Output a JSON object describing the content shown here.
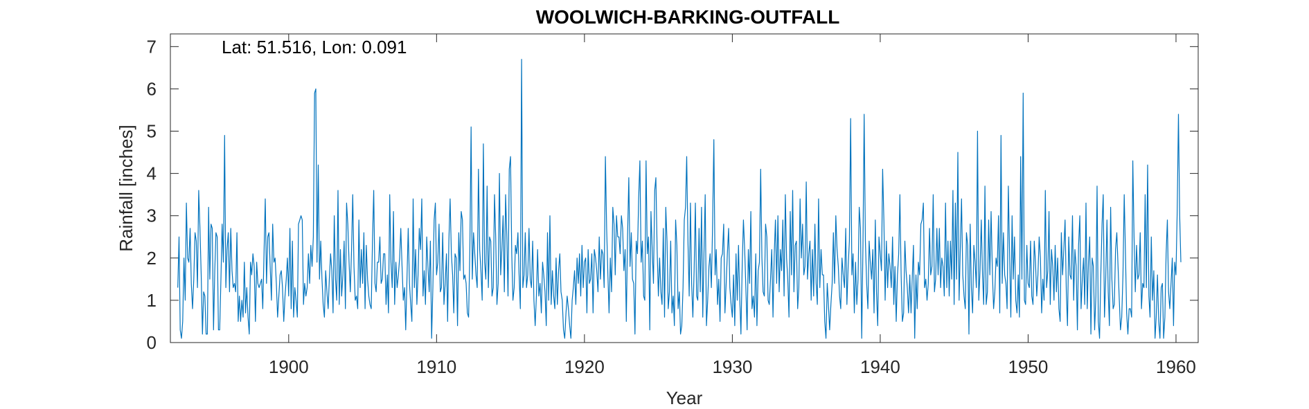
{
  "chart_data": {
    "type": "line",
    "title": "WOOLWICH-BARKING-OUTFALL",
    "annotation": "Lat: 51.516, Lon: 0.091",
    "xlabel": "Year",
    "ylabel": "Rainfall [inches]",
    "xlim": [
      1892.0,
      1961.5
    ],
    "ylim": [
      0,
      7.3
    ],
    "xticks": [
      1900,
      1910,
      1920,
      1930,
      1940,
      1950,
      1960
    ],
    "yticks": [
      0,
      1,
      2,
      3,
      4,
      5,
      6,
      7
    ],
    "grid": false,
    "box": true,
    "series": [
      {
        "color": "#0072BD",
        "x_start": 1892.5,
        "x_step": 0.08333,
        "values": [
          1.3,
          2.5,
          0.3,
          0.1,
          0.5,
          2.0,
          1.0,
          3.3,
          2.0,
          1.9,
          2.7,
          1.4,
          0.8,
          1.5,
          2.6,
          2.4,
          1.3,
          3.6,
          2.7,
          1.6,
          0.2,
          1.2,
          1.1,
          0.2,
          0.2,
          3.2,
          1.5,
          2.8,
          2.7,
          0.3,
          1.7,
          2.6,
          2.5,
          0.3,
          0.3,
          1.5,
          2.8,
          1.9,
          4.9,
          1.3,
          2.2,
          2.6,
          1.2,
          2.7,
          1.7,
          1.3,
          1.4,
          1.2,
          2.6,
          0.5,
          1.1,
          0.5,
          1.0,
          0.6,
          1.9,
          0.7,
          1.3,
          0.6,
          0.2,
          1.9,
          1.6,
          2.1,
          1.8,
          0.5,
          1.9,
          1.4,
          1.3,
          1.4,
          1.5,
          0.8,
          2.1,
          3.4,
          1.4,
          2.5,
          2.6,
          1.8,
          1.0,
          2.8,
          1.9,
          2.0,
          1.4,
          0.6,
          1.1,
          1.6,
          1.7,
          1.3,
          0.5,
          1.1,
          1.5,
          2.0,
          1.1,
          2.7,
          0.8,
          2.4,
          0.6,
          1.3,
          1.0,
          0.6,
          2.8,
          2.9,
          3.0,
          2.9,
          0.9,
          1.4,
          1.1,
          1.3,
          2.1,
          1.4,
          2.3,
          1.8,
          2.5,
          5.9,
          6.0,
          1.9,
          4.2,
          1.5,
          2.4,
          1.5,
          0.9,
          0.6,
          1.7,
          1.2,
          0.8,
          1.5,
          2.1,
          1.7,
          0.7,
          3.0,
          1.5,
          1.0,
          3.6,
          0.9,
          2.2,
          1.1,
          1.6,
          2.4,
          0.8,
          3.3,
          2.8,
          1.9,
          1.2,
          2.2,
          3.5,
          1.8,
          1.0,
          1.1,
          0.8,
          2.9,
          1.3,
          2.2,
          1.4,
          2.6,
          0.8,
          2.3,
          1.5,
          1.1,
          0.9,
          0.8,
          2.4,
          3.6,
          1.4,
          1.2,
          1.9,
          1.9,
          2.5,
          1.4,
          1.5,
          2.1,
          2.1,
          0.9,
          1.6,
          0.7,
          3.5,
          1.9,
          1.3,
          3.1,
          0.9,
          1.9,
          1.3,
          1.6,
          2.0,
          2.7,
          1.8,
          1.0,
          1.3,
          0.3,
          1.5,
          2.7,
          1.4,
          0.9,
          0.5,
          3.4,
          1.3,
          2.2,
          0.9,
          1.6,
          2.7,
          2.2,
          3.4,
          1.1,
          1.7,
          0.9,
          2.5,
          1.8,
          1.2,
          2.4,
          0.1,
          1.3,
          2.9,
          3.3,
          1.6,
          1.9,
          2.8,
          1.2,
          1.3,
          2.6,
          0.9,
          1.4,
          2.1,
          0.5,
          2.4,
          3.4,
          2.1,
          1.6,
          0.7,
          2.1,
          2.0,
          0.4,
          2.6,
          1.7,
          3.1,
          2.9,
          1.5,
          1.6,
          1.4,
          0.7,
          0.6,
          2.2,
          5.1,
          1.5,
          2.6,
          2.1,
          1.6,
          1.3,
          4.1,
          2.2,
          1.7,
          1.0,
          4.7,
          1.9,
          1.5,
          3.7,
          1.3,
          2.5,
          2.4,
          1.1,
          1.3,
          3.5,
          2.5,
          0.9,
          1.4,
          4.0,
          1.6,
          2.2,
          3.0,
          1.2,
          3.5,
          2.5,
          1.1,
          4.1,
          4.4,
          2.1,
          1.0,
          1.3,
          2.3,
          2.1,
          2.6,
          1.6,
          0.8,
          6.7,
          1.3,
          1.6,
          2.6,
          1.3,
          1.6,
          2.7,
          1.5,
          1.3,
          2.4,
          1.0,
          0.4,
          1.1,
          2.2,
          1.1,
          1.4,
          0.7,
          1.9,
          1.6,
          1.2,
          0.4,
          2.6,
          1.0,
          3.0,
          0.9,
          1.7,
          1.1,
          0.8,
          2.0,
          0.9,
          1.7,
          2.1,
          1.2,
          1.0,
          0.3,
          0.1,
          0.7,
          1.1,
          0.8,
          0.4,
          0.1,
          1.0,
          1.3,
          1.7,
          0.9,
          2.0,
          1.4,
          2.1,
          1.1,
          2.3,
          1.3,
          1.9,
          2.0,
          0.7,
          2.2,
          1.4,
          1.5,
          2.1,
          0.7,
          2.2,
          2.0,
          1.7,
          1.2,
          2.5,
          1.5,
          2.2,
          2.1,
          1.3,
          4.4,
          2.7,
          1.6,
          0.7,
          2.0,
          1.2,
          3.2,
          2.8,
          1.6,
          3.0,
          2.5,
          2.5,
          2.1,
          3.0,
          2.7,
          1.7,
          2.2,
          0.5,
          2.5,
          3.9,
          1.8,
          2.6,
          1.5,
          1.4,
          0.2,
          2.4,
          2.1,
          3.4,
          4.3,
          1.9,
          2.4,
          1.1,
          1.0,
          4.3,
          2.1,
          2.5,
          0.3,
          3.1,
          2.2,
          1.4,
          3.6,
          3.9,
          2.2,
          1.1,
          2.0,
          1.2,
          0.9,
          2.7,
          0.6,
          3.2,
          2.4,
          0.8,
          1.2,
          2.4,
          0.7,
          1.1,
          0.4,
          2.9,
          2.3,
          0.8,
          1.2,
          0.2,
          0.4,
          1.3,
          2.9,
          3.2,
          4.4,
          2.4,
          1.1,
          3.3,
          1.4,
          0.6,
          1.7,
          3.3,
          1.1,
          1.0,
          2.7,
          1.2,
          3.2,
          0.6,
          2.1,
          3.5,
          0.4,
          1.0,
          1.8,
          2.1,
          1.3,
          2.8,
          4.8,
          1.6,
          2.2,
          0.9,
          1.5,
          0.5,
          2.0,
          2.1,
          2.8,
          0.7,
          1.4,
          2.1,
          2.7,
          1.3,
          0.9,
          0.6,
          1.6,
          0.4,
          2.1,
          1.0,
          2.3,
          1.1,
          0.2,
          1.8,
          2.9,
          2.2,
          1.3,
          0.3,
          2.2,
          1.4,
          3.1,
          0.8,
          1.1,
          0.6,
          2.1,
          0.4,
          1.7,
          1.9,
          4.1,
          2.0,
          1.2,
          1.1,
          2.8,
          2.5,
          1.0,
          0.9,
          1.5,
          2.2,
          0.6,
          2.1,
          2.9,
          1.4,
          3.0,
          1.2,
          2.2,
          1.7,
          2.9,
          1.1,
          3.5,
          2.0,
          1.5,
          0.6,
          3.1,
          1.6,
          3.6,
          1.2,
          2.3,
          2.4,
          0.8,
          1.3,
          3.4,
          2.0,
          2.8,
          1.6,
          1.8,
          3.8,
          1.5,
          2.1,
          2.4,
          1.0,
          2.2,
          1.1,
          2.8,
          1.4,
          0.9,
          3.4,
          1.3,
          2.2,
          1.6,
          1.6,
          0.5,
          0.1,
          1.4,
          0.9,
          0.3,
          0.9,
          1.4,
          2.6,
          1.4,
          3.0,
          2.2,
          1.8,
          1.1,
          0.8,
          2.0,
          1.6,
          1.3,
          2.7,
          0.9,
          1.8,
          2.4,
          5.3,
          1.6,
          2.1,
          0.7,
          1.9,
          0.9,
          1.5,
          3.2,
          2.7,
          0.1,
          2.3,
          5.4,
          2.4,
          1.4,
          0.8,
          2.4,
          1.9,
          1.5,
          2.2,
          0.7,
          2.9,
          1.2,
          0.4,
          2.5,
          2.1,
          1.7,
          4.1,
          2.9,
          1.0,
          2.4,
          1.3,
          2.1,
          1.8,
          1.3,
          2.5,
          0.9,
          1.8,
          0.5,
          1.6,
          2.1,
          3.5,
          1.6,
          0.5,
          0.7,
          2.4,
          1.7,
          1.3,
          0.7,
          1.6,
          0.7,
          1.5,
          2.3,
          0.1,
          1.6,
          0.8,
          1.9,
          1.6,
          2.8,
          2.9,
          3.3,
          1.3,
          1.5,
          1.0,
          1.4,
          2.7,
          1.6,
          1.8,
          3.5,
          1.2,
          1.5,
          2.7,
          1.6,
          2.7,
          1.3,
          2.0,
          1.8,
          1.1,
          3.3,
          1.3,
          2.4,
          1.1,
          2.4,
          1.5,
          3.6,
          0.9,
          3.3,
          1.5,
          4.5,
          1.0,
          2.2,
          3.4,
          1.6,
          1.1,
          0.8,
          2.6,
          2.3,
          0.2,
          2.8,
          1.3,
          0.7,
          2.3,
          1.9,
          1.3,
          5.0,
          1.0,
          1.7,
          2.9,
          1.6,
          0.9,
          3.7,
          0.9,
          1.2,
          2.9,
          1.6,
          3.1,
          1.7,
          0.8,
          1.2,
          2.0,
          1.8,
          3.0,
          0.7,
          4.9,
          1.4,
          2.6,
          1.6,
          1.4,
          0.8,
          3.7,
          2.1,
          0.6,
          3.0,
          1.5,
          2.5,
          1.0,
          0.7,
          1.6,
          0.6,
          4.4,
          1.5,
          5.9,
          1.0,
          0.9,
          2.3,
          1.4,
          1.3,
          2.4,
          1.1,
          0.9,
          2.4,
          1.9,
          1.1,
          1.6,
          2.5,
          2.0,
          0.7,
          1.5,
          1.0,
          3.6,
          1.3,
          1.7,
          3.1,
          0.9,
          2.2,
          1.8,
          1.0,
          2.3,
          1.2,
          2.0,
          0.8,
          0.5,
          2.6,
          1.6,
          2.2,
          2.9,
          1.2,
          0.4,
          2.5,
          1.6,
          1.5,
          3.0,
          1.0,
          2.2,
          1.8,
          0.3,
          2.3,
          3.0,
          0.8,
          1.5,
          2.0,
          0.9,
          3.3,
          0.8,
          1.9,
          2.5,
          0.2,
          2.0,
          1.8,
          0.3,
          1.1,
          3.7,
          0.5,
          0.1,
          1.6,
          2.8,
          3.5,
          0.6,
          1.5,
          2.9,
          1.2,
          0.4,
          3.2,
          1.5,
          0.8,
          0.9,
          2.2,
          2.6,
          1.8,
          1.0,
          0.3,
          0.6,
          1.6,
          3.5,
          2.1,
          0.7,
          0.2,
          0.8,
          0.8,
          0.6,
          4.3,
          2.5,
          1.2,
          2.3,
          1.5,
          1.6,
          2.6,
          0.8,
          1.4,
          1.3,
          3.5,
          1.3,
          4.2,
          1.1,
          0.6,
          2.5,
          1.0,
          1.7,
          0.1,
          0.6,
          1.6,
          0.5,
          0.1,
          1.3,
          1.4,
          0.1,
          0.6,
          2.1,
          2.9,
          1.2,
          0.8,
          1.4,
          2.0,
          0.4,
          1.9,
          1.6,
          3.1,
          5.4,
          3.0,
          1.9
        ]
      }
    ]
  }
}
